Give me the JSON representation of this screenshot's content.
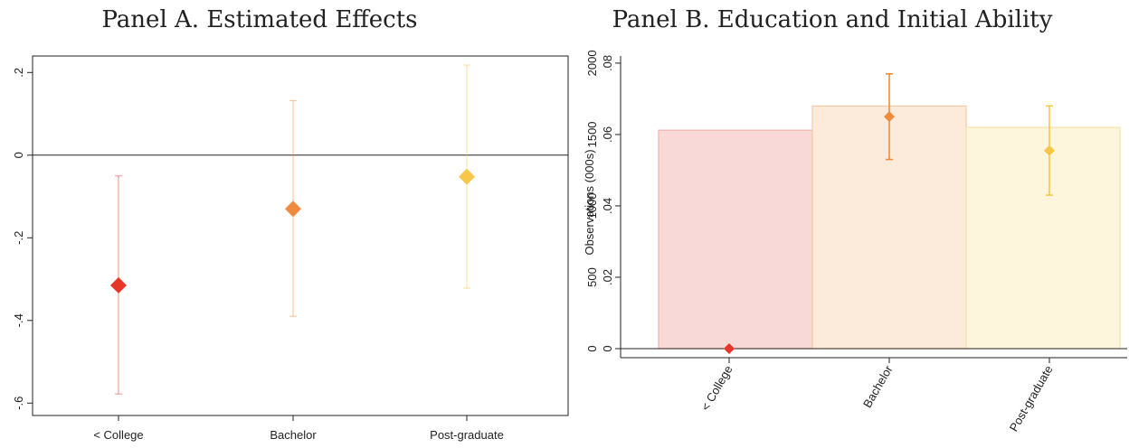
{
  "chart_data": [
    {
      "type": "scatter",
      "title": "Panel A. Estimated Effects",
      "categories": [
        "< College",
        "Bachelor",
        "Post-graduate"
      ],
      "estimates": [
        -0.315,
        -0.13,
        -0.052
      ],
      "ci_low": [
        -0.578,
        -0.39,
        -0.322
      ],
      "ci_high": [
        -0.05,
        0.132,
        0.218
      ],
      "colors": [
        "#e8352a",
        "#f08a3c",
        "#f8c74a"
      ],
      "yticks": [
        "-.6",
        "-.4",
        "-.2",
        "0",
        ".2"
      ],
      "ylim": [
        -0.63,
        0.24
      ],
      "reference_line": 0,
      "grid": false
    },
    {
      "type": "bar",
      "title": "Panel B. Education and Initial Ability",
      "categories": [
        "< College",
        "Bachelor",
        "Post-graduate"
      ],
      "bar_axis_label": "Observations (000s)",
      "bar_values": [
        1530,
        1700,
        1550
      ],
      "bar_ticks": [
        "0",
        "500",
        "1000",
        "1500",
        "2000"
      ],
      "bar_ylim": [
        0,
        2050
      ],
      "point_ticks": [
        "0",
        ".02",
        ".04",
        ".06",
        ".08"
      ],
      "point_ylim": [
        0,
        0.082
      ],
      "point_estimates": [
        0,
        0.065,
        0.0555
      ],
      "point_ci_low": [
        null,
        0.053,
        0.043
      ],
      "point_ci_high": [
        null,
        0.077,
        0.068
      ],
      "bar_colors": [
        "#f9d9d7",
        "#fcebdb",
        "#fdf6dc"
      ],
      "bar_border_colors": [
        "#f2b2ad",
        "#f5caa4",
        "#f6e2a8"
      ],
      "point_colors": [
        "#e8352a",
        "#f08a3c",
        "#f8c74a"
      ]
    }
  ]
}
